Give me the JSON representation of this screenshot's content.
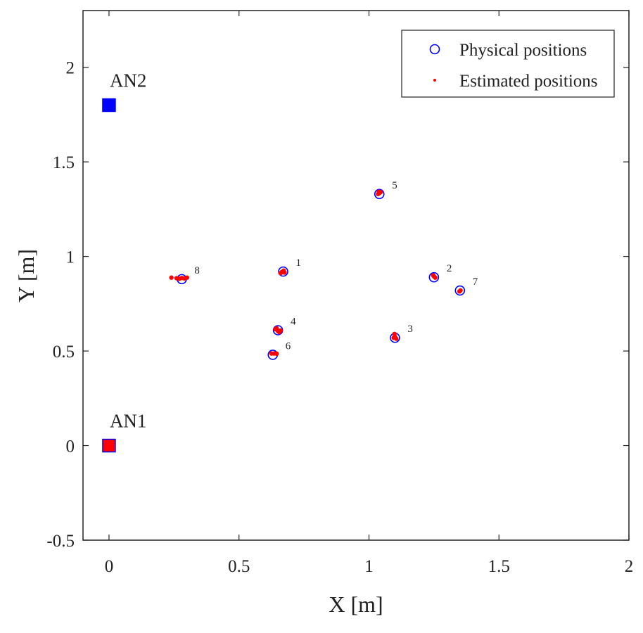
{
  "chart_data": {
    "type": "scatter",
    "title": "",
    "xlabel": "X [m]",
    "ylabel": "Y [m]",
    "xlim": [
      -0.1,
      2
    ],
    "ylim": [
      -0.5,
      2.3
    ],
    "xticks": [
      0,
      0.5,
      1,
      1.5,
      2
    ],
    "xtick_labels": [
      "0",
      "0.5",
      "1",
      "1.5",
      "2"
    ],
    "yticks": [
      -0.5,
      0,
      0.5,
      1,
      1.5,
      2
    ],
    "ytick_labels": [
      "-0.5",
      "0",
      "0.5",
      "1",
      "1.5",
      "2"
    ],
    "grid": false,
    "legend": {
      "position": "top-right",
      "entries": [
        {
          "label": "Physical positions",
          "marker": "circle",
          "color": "#0000ff"
        },
        {
          "label": "Estimated positions",
          "marker": "dot",
          "color": "#ff0000"
        }
      ]
    },
    "anchors": [
      {
        "label": "AN2",
        "x": 0.0,
        "y": 1.8,
        "color": "#0000ff",
        "edge": "#0000ff"
      },
      {
        "label": "AN1",
        "x": 0.0,
        "y": 0.0,
        "color": "#ff0000",
        "edge": "#0000ff"
      }
    ],
    "series": [
      {
        "name": "Physical positions",
        "points": [
          {
            "label": "1",
            "x": 0.67,
            "y": 0.92
          },
          {
            "label": "2",
            "x": 1.25,
            "y": 0.89
          },
          {
            "label": "3",
            "x": 1.1,
            "y": 0.57
          },
          {
            "label": "4",
            "x": 0.65,
            "y": 0.61
          },
          {
            "label": "5",
            "x": 1.04,
            "y": 1.33
          },
          {
            "label": "6",
            "x": 0.63,
            "y": 0.48
          },
          {
            "label": "7",
            "x": 1.35,
            "y": 0.82
          },
          {
            "label": "8",
            "x": 0.28,
            "y": 0.88
          }
        ]
      },
      {
        "name": "Estimated positions",
        "points": [
          {
            "x": 0.665,
            "y": 0.918
          },
          {
            "x": 0.672,
            "y": 0.925
          },
          {
            "x": 0.66,
            "y": 0.912
          },
          {
            "x": 0.675,
            "y": 0.915
          },
          {
            "x": 1.25,
            "y": 0.895
          },
          {
            "x": 1.255,
            "y": 0.888
          },
          {
            "x": 1.247,
            "y": 0.9
          },
          {
            "x": 1.1,
            "y": 0.575
          },
          {
            "x": 1.105,
            "y": 0.565
          },
          {
            "x": 1.095,
            "y": 0.57
          },
          {
            "x": 1.098,
            "y": 0.59
          },
          {
            "x": 0.64,
            "y": 0.615
          },
          {
            "x": 0.65,
            "y": 0.605
          },
          {
            "x": 0.66,
            "y": 0.608
          },
          {
            "x": 0.645,
            "y": 0.62
          },
          {
            "x": 0.655,
            "y": 0.6
          },
          {
            "x": 1.04,
            "y": 1.335
          },
          {
            "x": 1.035,
            "y": 1.33
          },
          {
            "x": 1.045,
            "y": 1.34
          },
          {
            "x": 1.038,
            "y": 1.342
          },
          {
            "x": 0.625,
            "y": 0.487
          },
          {
            "x": 0.635,
            "y": 0.487
          },
          {
            "x": 0.645,
            "y": 0.486
          },
          {
            "x": 1.352,
            "y": 0.82
          },
          {
            "x": 1.348,
            "y": 0.815
          },
          {
            "x": 0.24,
            "y": 0.888
          },
          {
            "x": 0.26,
            "y": 0.885
          },
          {
            "x": 0.27,
            "y": 0.882
          },
          {
            "x": 0.28,
            "y": 0.886
          },
          {
            "x": 0.29,
            "y": 0.884
          },
          {
            "x": 0.3,
            "y": 0.888
          }
        ]
      }
    ]
  }
}
